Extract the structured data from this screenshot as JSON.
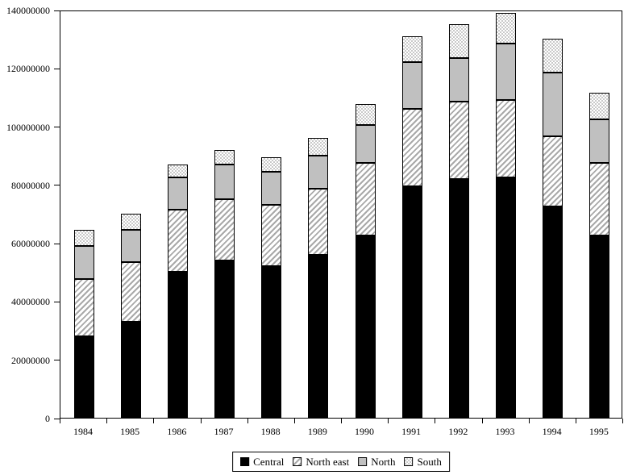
{
  "chart_data": {
    "type": "bar",
    "stacked": true,
    "title": "",
    "xlabel": "",
    "ylabel": "",
    "grid": false,
    "legend_position": "bottom",
    "categories": [
      "1984",
      "1985",
      "1986",
      "1987",
      "1988",
      "1989",
      "1990",
      "1991",
      "1992",
      "1993",
      "1994",
      "1995"
    ],
    "series": [
      {
        "name": "Central",
        "pattern": "solid-black",
        "color": "#000000",
        "values": [
          28000000,
          33000000,
          50000000,
          54000000,
          52000000,
          56000000,
          62500000,
          79500000,
          82000000,
          82500000,
          72500000,
          62500000
        ]
      },
      {
        "name": "North east",
        "pattern": "diag-hatch",
        "color": "#a9a9a9",
        "values": [
          19500000,
          20500000,
          21500000,
          21000000,
          21000000,
          22500000,
          25000000,
          26500000,
          26500000,
          26500000,
          24000000,
          25000000
        ]
      },
      {
        "name": "North",
        "pattern": "solid-gray",
        "color": "#c0c0c0",
        "values": [
          11500000,
          11000000,
          11000000,
          12000000,
          11500000,
          11500000,
          13000000,
          16000000,
          15000000,
          19500000,
          22000000,
          15000000
        ]
      },
      {
        "name": "South",
        "pattern": "checker",
        "color": "#c9c9c9",
        "values": [
          5500000,
          5500000,
          4500000,
          5000000,
          5000000,
          6000000,
          7000000,
          9000000,
          11500000,
          10500000,
          11500000,
          9000000
        ]
      }
    ],
    "ylim": [
      0,
      140000000
    ],
    "ytick_interval": 20000000,
    "ytick_labels": [
      "0",
      "20000000",
      "40000000",
      "60000000",
      "80000000",
      "100000000",
      "120000000",
      "140000000"
    ]
  },
  "legend": {
    "items": [
      {
        "label": "Central"
      },
      {
        "label": "North east"
      },
      {
        "label": "North"
      },
      {
        "label": "South"
      }
    ]
  }
}
